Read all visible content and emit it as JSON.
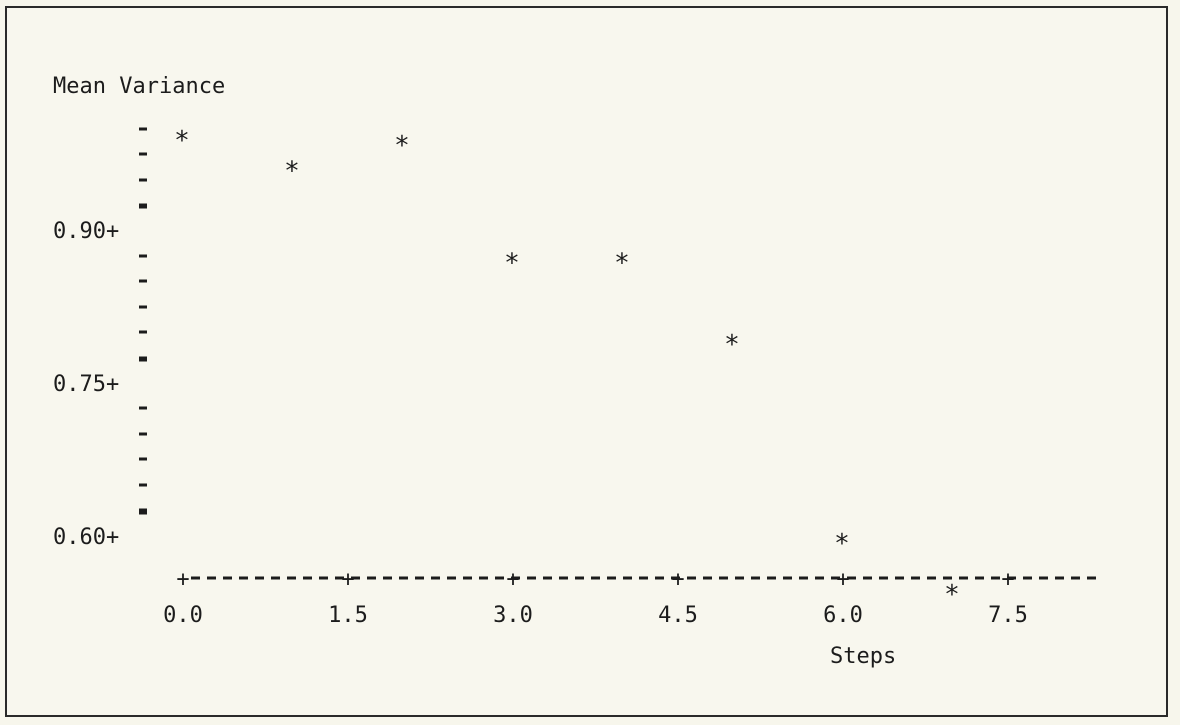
{
  "chart_data": {
    "type": "scatter",
    "title": "",
    "ylabel": "Mean Variance",
    "xlabel": "Steps",
    "marker": "*",
    "x": [
      0,
      1,
      2,
      3,
      4,
      5,
      6,
      7
    ],
    "y": [
      0.995,
      0.965,
      0.99,
      0.875,
      0.875,
      0.795,
      0.6,
      0.55
    ],
    "x_ticks": [
      "0.0",
      "1.5",
      "3.0",
      "4.5",
      "6.0",
      "7.5"
    ],
    "x_tick_values": [
      0,
      1.5,
      3.0,
      4.5,
      6.0,
      7.5
    ],
    "y_ticks": [
      "0.90+",
      "0.75+",
      "0.60+"
    ],
    "y_tick_values": [
      0.9,
      0.75,
      0.6
    ],
    "xlim": [
      -0.12,
      8.3
    ],
    "ylim": [
      0.495,
      1.02
    ],
    "grid": false,
    "legend": "none"
  }
}
